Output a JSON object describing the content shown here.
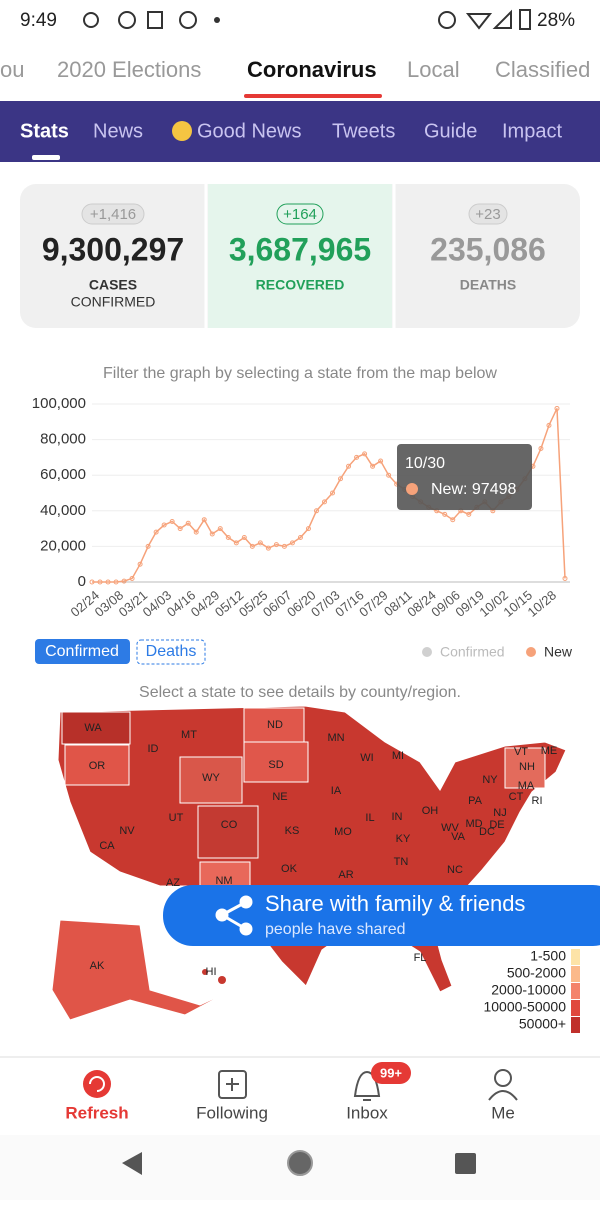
{
  "status_bar": {
    "time": "9:49",
    "battery": "28%"
  },
  "top_tabs": [
    "ou",
    "2020 Elections",
    "Coronavirus",
    "Local",
    "Classified"
  ],
  "sub_tabs": [
    "Stats",
    "News",
    "Good News",
    "Tweets",
    "Guide",
    "Impact"
  ],
  "stats": [
    {
      "change": "+1,416",
      "value": "9,300,297",
      "label": [
        "CASES",
        "CONFIRMED"
      ]
    },
    {
      "change": "+164",
      "value": "3,687,965",
      "label": [
        "RECOVERED"
      ]
    },
    {
      "change": "+23",
      "value": "235,086",
      "label": [
        "DEATHS"
      ]
    }
  ],
  "filter_hint": "Filter the graph by selecting a state from the map below",
  "chart_data": {
    "type": "line",
    "categories": [
      "02/24",
      null,
      null,
      "03/08",
      null,
      null,
      "03/21",
      null,
      null,
      "04/03",
      null,
      null,
      "04/16",
      null,
      null,
      "04/29",
      null,
      null,
      "05/12",
      null,
      null,
      "05/25",
      null,
      null,
      "06/07",
      null,
      null,
      "06/20",
      null,
      null,
      "07/03",
      null,
      null,
      "07/16",
      null,
      null,
      "07/29",
      null,
      null,
      "08/11",
      null,
      null,
      "08/24",
      null,
      null,
      "09/06",
      null,
      null,
      "09/19",
      null,
      null,
      "10/02",
      null,
      null,
      "10/15",
      null,
      null,
      "10/28",
      null,
      null
    ],
    "series": [
      {
        "name": "New",
        "color": "#f6a27a",
        "values": [
          0,
          0,
          0,
          0,
          500,
          2000,
          10000,
          20000,
          28000,
          32000,
          34000,
          30000,
          33000,
          28000,
          35000,
          27000,
          30000,
          25000,
          22000,
          25000,
          20000,
          22000,
          19000,
          21000,
          20000,
          22000,
          25000,
          30000,
          40000,
          45000,
          50000,
          58000,
          65000,
          70000,
          72000,
          65000,
          68000,
          60000,
          55000,
          52000,
          48000,
          45000,
          42000,
          40000,
          38000,
          35000,
          40000,
          38000,
          42000,
          45000,
          40000,
          45000,
          48000,
          52000,
          58000,
          65000,
          75000,
          88000,
          97498,
          2000
        ]
      }
    ],
    "hidden_series": [
      {
        "name": "Confirmed",
        "color": "#d0d0d0"
      }
    ],
    "ylim": [
      0,
      100000
    ],
    "yticks": [
      0,
      {
        "value": 20000,
        "label": "20,000"
      },
      {
        "value": 40000,
        "label": "40,000"
      },
      {
        "value": 60000,
        "label": "60,000"
      },
      {
        "value": 80000,
        "label": "80,000"
      },
      {
        "value": 100000,
        "label": "100,000"
      }
    ],
    "grid": true,
    "tooltip": {
      "date": "10/30",
      "text": "New: 97498"
    }
  },
  "toggles": [
    "Confirmed",
    "Deaths"
  ],
  "map": {
    "hint": "Select a state to see details by county/region.",
    "states": [
      "WA",
      "MT",
      "ND",
      "MN",
      "VT",
      "ME",
      "OR",
      "ID",
      "WI",
      "MI",
      "NH",
      "SD",
      "WY",
      "NY",
      "MA",
      "CT",
      "RI",
      "NE",
      "IA",
      "PA",
      "NJ",
      "IL",
      "IN",
      "OH",
      "DE",
      "UT",
      "NV",
      "CO",
      "KS",
      "MO",
      "WV",
      "MD",
      "VA",
      "DC",
      "KY",
      "CA",
      "TN",
      "NC",
      "OK",
      "AR",
      "AZ",
      "NM",
      "AK",
      "HI",
      "FL"
    ],
    "legend": [
      {
        "label": "1-500",
        "color": "#fde3a7"
      },
      {
        "label": "500-2000",
        "color": "#fbb98a"
      },
      {
        "label": "2000-10000",
        "color": "#f4836b"
      },
      {
        "label": "10000-50000",
        "color": "#e0483d"
      },
      {
        "label": "50000+",
        "color": "#c0302b"
      }
    ]
  },
  "share": {
    "title": "Share with family & friends",
    "subtitle": "people have shared"
  },
  "bottom_nav": [
    {
      "label": "Refresh"
    },
    {
      "label": "Following"
    },
    {
      "label": "Inbox",
      "badge": "99+"
    },
    {
      "label": "Me"
    }
  ]
}
